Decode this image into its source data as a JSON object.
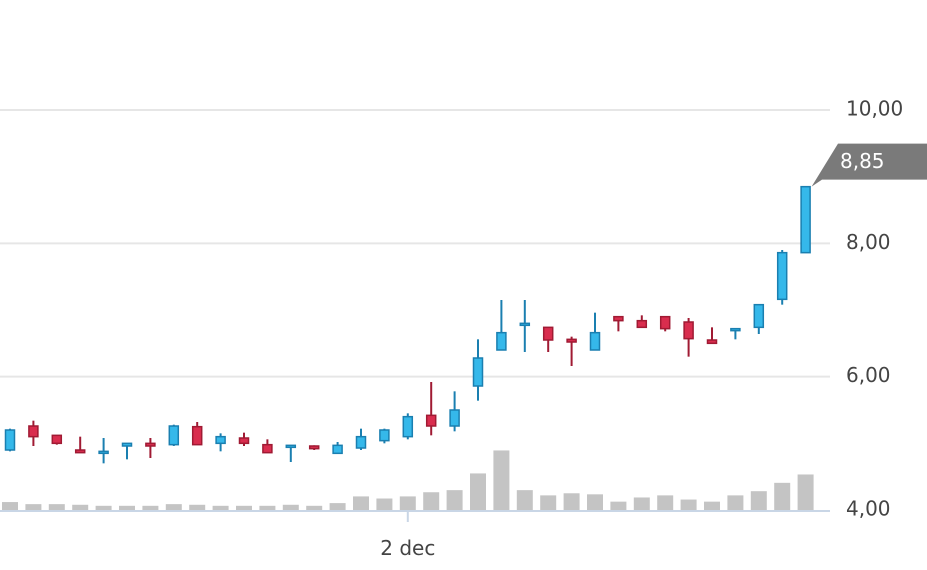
{
  "chart_data": {
    "type": "candlestick",
    "y_range": [
      4.0,
      10.0
    ],
    "y_ticks": [
      "4,00",
      "6,00",
      "8,00",
      "10,00"
    ],
    "x_tick_label": "2 dec",
    "last_price_label": "8,85",
    "colors": {
      "up_fill": "#35b8ea",
      "up_stroke": "#1a7fb0",
      "down_fill": "#d92d4e",
      "down_stroke": "#a01a33",
      "volume": "#c4c4c4",
      "grid": "#e6e6e6",
      "axis": "#c9d6e6",
      "last_label_bg": "#7a7a7a"
    },
    "candles": [
      {
        "open": 4.9,
        "high": 5.22,
        "low": 4.88,
        "close": 5.2,
        "volume": 0.38
      },
      {
        "open": 5.26,
        "high": 5.34,
        "low": 4.96,
        "close": 5.1,
        "volume": 0.28
      },
      {
        "open": 5.12,
        "high": 5.12,
        "low": 4.98,
        "close": 5.0,
        "volume": 0.28
      },
      {
        "open": 4.9,
        "high": 5.1,
        "low": 4.86,
        "close": 4.86,
        "volume": 0.25
      },
      {
        "open": 4.88,
        "high": 5.08,
        "low": 4.7,
        "close": 4.88,
        "volume": 0.2
      },
      {
        "open": 4.96,
        "high": 5.0,
        "low": 4.76,
        "close": 5.0,
        "volume": 0.2
      },
      {
        "open": 5.0,
        "high": 5.08,
        "low": 4.78,
        "close": 4.96,
        "volume": 0.2
      },
      {
        "open": 4.98,
        "high": 5.28,
        "low": 4.96,
        "close": 5.26,
        "volume": 0.28
      },
      {
        "open": 5.25,
        "high": 5.32,
        "low": 5.0,
        "close": 4.98,
        "volume": 0.25
      },
      {
        "open": 5.0,
        "high": 5.15,
        "low": 4.88,
        "close": 5.1,
        "volume": 0.2
      },
      {
        "open": 5.08,
        "high": 5.16,
        "low": 4.96,
        "close": 5.0,
        "volume": 0.2
      },
      {
        "open": 4.98,
        "high": 5.06,
        "low": 4.86,
        "close": 4.86,
        "volume": 0.2
      },
      {
        "open": 4.95,
        "high": 4.97,
        "low": 4.72,
        "close": 4.97,
        "volume": 0.25
      },
      {
        "open": 4.96,
        "high": 4.97,
        "low": 4.9,
        "close": 4.92,
        "volume": 0.2
      },
      {
        "open": 4.85,
        "high": 5.02,
        "low": 4.84,
        "close": 4.97,
        "volume": 0.33
      },
      {
        "open": 4.93,
        "high": 5.22,
        "low": 4.9,
        "close": 5.1,
        "volume": 0.65
      },
      {
        "open": 5.04,
        "high": 5.22,
        "low": 5.0,
        "close": 5.2,
        "volume": 0.55
      },
      {
        "open": 5.1,
        "high": 5.45,
        "low": 5.06,
        "close": 5.4,
        "volume": 0.65
      },
      {
        "open": 5.42,
        "high": 5.92,
        "low": 5.12,
        "close": 5.26,
        "volume": 0.85
      },
      {
        "open": 5.26,
        "high": 5.78,
        "low": 5.18,
        "close": 5.5,
        "volume": 0.95
      },
      {
        "open": 5.86,
        "high": 6.56,
        "low": 5.64,
        "close": 6.28,
        "volume": 1.75
      },
      {
        "open": 6.4,
        "high": 7.15,
        "low": 6.4,
        "close": 6.66,
        "volume": 2.85
      },
      {
        "open": 6.8,
        "high": 7.15,
        "low": 6.37,
        "close": 6.8,
        "volume": 0.95
      },
      {
        "open": 6.74,
        "high": 6.74,
        "low": 6.37,
        "close": 6.55,
        "volume": 0.7
      },
      {
        "open": 6.56,
        "high": 6.6,
        "low": 6.16,
        "close": 6.52,
        "volume": 0.8
      },
      {
        "open": 6.4,
        "high": 6.96,
        "low": 6.4,
        "close": 6.66,
        "volume": 0.75
      },
      {
        "open": 6.9,
        "high": 6.9,
        "low": 6.68,
        "close": 6.84,
        "volume": 0.4
      },
      {
        "open": 6.84,
        "high": 6.92,
        "low": 6.73,
        "close": 6.74,
        "volume": 0.6
      },
      {
        "open": 6.9,
        "high": 6.9,
        "low": 6.68,
        "close": 6.72,
        "volume": 0.7
      },
      {
        "open": 6.82,
        "high": 6.88,
        "low": 6.3,
        "close": 6.57,
        "volume": 0.5
      },
      {
        "open": 6.55,
        "high": 6.74,
        "low": 6.5,
        "close": 6.5,
        "volume": 0.4
      },
      {
        "open": 6.7,
        "high": 6.73,
        "low": 6.56,
        "close": 6.72,
        "volume": 0.7
      },
      {
        "open": 6.74,
        "high": 7.08,
        "low": 6.64,
        "close": 7.08,
        "volume": 0.9
      },
      {
        "open": 7.16,
        "high": 7.9,
        "low": 7.08,
        "close": 7.86,
        "volume": 1.3
      },
      {
        "open": 7.86,
        "high": 8.85,
        "low": 7.86,
        "close": 8.85,
        "volume": 1.7
      }
    ]
  }
}
